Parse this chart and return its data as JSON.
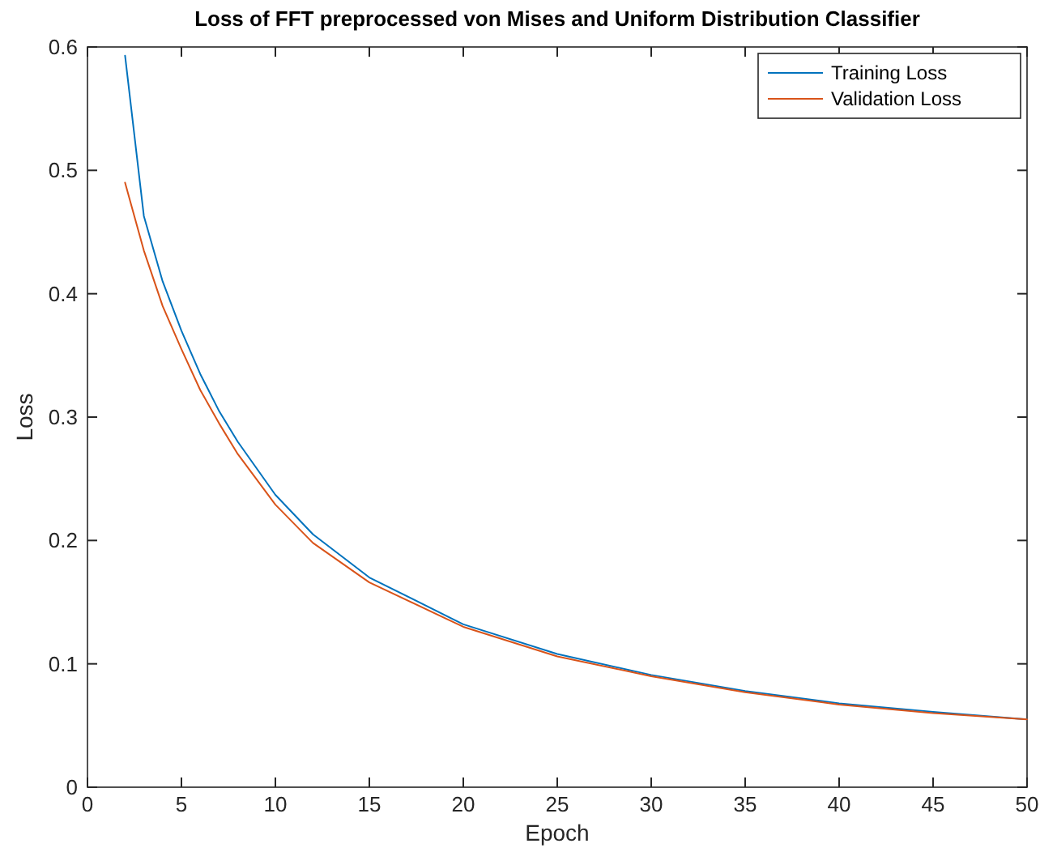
{
  "chart_data": {
    "type": "line",
    "title": "Loss of FFT preprocessed von Mises and Uniform Distribution Classifier",
    "xlabel": "Epoch",
    "ylabel": "Loss",
    "x": [
      2,
      3,
      4,
      5,
      6,
      7,
      8,
      10,
      12,
      15,
      20,
      25,
      30,
      35,
      40,
      45,
      50
    ],
    "series": [
      {
        "name": "Training Loss",
        "color": "#0072bd",
        "values": [
          0.593,
          0.463,
          0.41,
          0.37,
          0.335,
          0.305,
          0.28,
          0.237,
          0.205,
          0.17,
          0.132,
          0.108,
          0.091,
          0.078,
          0.068,
          0.061,
          0.055
        ]
      },
      {
        "name": "Validation Loss",
        "color": "#d95319",
        "values": [
          0.49,
          0.435,
          0.39,
          0.355,
          0.322,
          0.295,
          0.27,
          0.229,
          0.198,
          0.166,
          0.13,
          0.106,
          0.09,
          0.077,
          0.067,
          0.06,
          0.055
        ]
      }
    ],
    "xlim": [
      0,
      50
    ],
    "xticks": [
      0,
      5,
      10,
      15,
      20,
      25,
      30,
      35,
      40,
      45,
      50
    ],
    "ylim": [
      0,
      0.6
    ],
    "yticks": [
      0,
      0.1,
      0.2,
      0.3,
      0.4,
      0.5,
      0.6
    ],
    "legend": "top right",
    "grid": false,
    "marker": "none",
    "line_style": "solid"
  }
}
